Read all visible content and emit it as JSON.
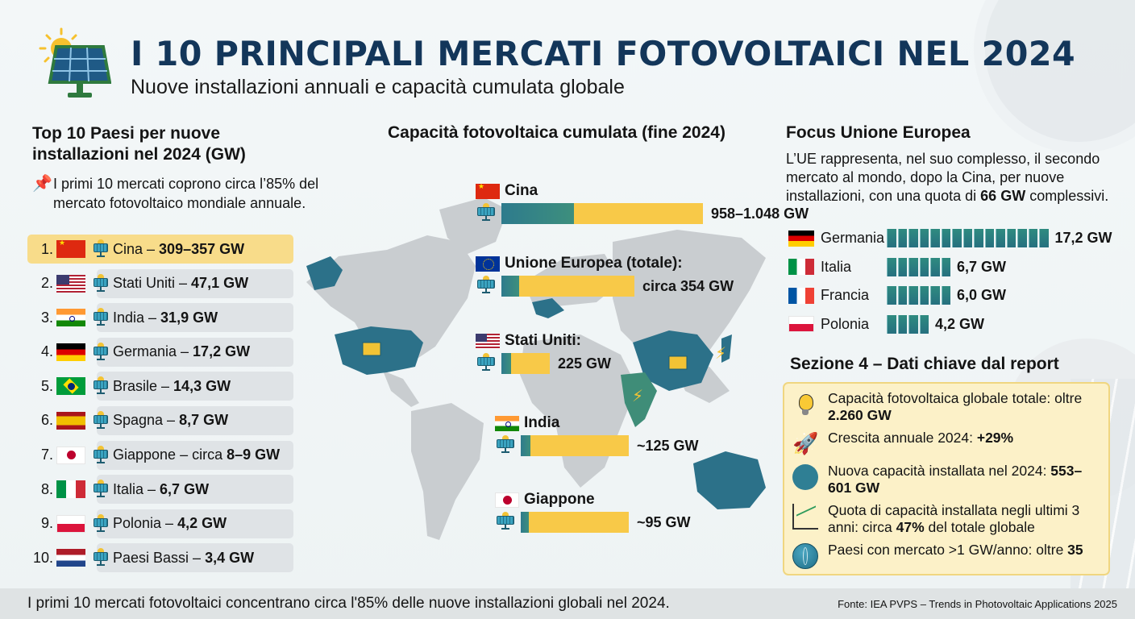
{
  "header": {
    "title": "I 10 PRINCIPALI MERCATI FOTOVOLTAICI NEL 2024",
    "subtitle": "Nuove installazioni annuali e capacità cumulata globale",
    "logo_icon": "solar-panel-with-sun-icon"
  },
  "left": {
    "title": "Top 10 Paesi per nuove installazioni nel 2024 (GW)",
    "note_icon": "pushpin-icon",
    "note": "I primi 10 mercati coprono circa l’85% del mercato fotovoltaico mondiale annuale.",
    "rows": [
      {
        "rank": "1.",
        "flag": "cn",
        "name": "Cina – ",
        "value": "309–357 GW",
        "highlight": true
      },
      {
        "rank": "2.",
        "flag": "us",
        "name": "Stati Uniti – ",
        "value": "47,1 GW"
      },
      {
        "rank": "3.",
        "flag": "in",
        "name": "India – ",
        "value": "31,9 GW"
      },
      {
        "rank": "4.",
        "flag": "de",
        "name": "Germania – ",
        "value": "17,2 GW"
      },
      {
        "rank": "5.",
        "flag": "br",
        "name": "Brasile – ",
        "value": "14,3 GW"
      },
      {
        "rank": "6.",
        "flag": "es",
        "name": "Spagna – ",
        "value": "8,7 GW"
      },
      {
        "rank": "7.",
        "flag": "jp",
        "name": "Giappone – circa ",
        "value": "8–9 GW"
      },
      {
        "rank": "8.",
        "flag": "it",
        "name": "Italia – ",
        "value": "6,7 GW"
      },
      {
        "rank": "9.",
        "flag": "pl",
        "name": "Polonia – ",
        "value": "4,2 GW"
      },
      {
        "rank": "10.",
        "flag": "nl",
        "name": "Paesi Bassi – ",
        "value": "3,4 GW"
      }
    ]
  },
  "middle": {
    "title": "Capacità fotovoltaica cumulata (fine 2024)",
    "items": [
      {
        "label": "Cina",
        "flag": "cn",
        "value": "958–1.048 GW"
      },
      {
        "label": "Unione Europea (totale):",
        "flag": "eu",
        "value": "circa 354 GW"
      },
      {
        "label": "Stati Uniti:",
        "flag": "us",
        "value": "225 GW"
      },
      {
        "label": "India",
        "flag": "in",
        "value": "~125 GW"
      },
      {
        "label": "Giappone",
        "flag": "jp",
        "value": "~95 GW"
      }
    ]
  },
  "right": {
    "eu_title": "Focus Unione Europea",
    "eu_text_pre": "L’UE rappresenta, nel suo complesso, il secondo mercato al mondo, dopo la Cina, per nuove installazioni, con una quota di ",
    "eu_text_bold": "66 GW",
    "eu_text_post": " complessivi.",
    "eu_rows": [
      {
        "flag": "de",
        "name": "Germania",
        "value": "17,2 GW",
        "blocks": 15
      },
      {
        "flag": "it",
        "name": "Italia",
        "value": "6,7 GW",
        "blocks": 6
      },
      {
        "flag": "fr",
        "name": "Francia",
        "value": "6,0 GW",
        "blocks": 6
      },
      {
        "flag": "pl",
        "name": "Polonia",
        "value": "4,2 GW",
        "blocks": 4
      }
    ],
    "key_title": "Sezione 4 – Dati chiave dal report",
    "key_items": [
      {
        "icon": "lightbulb-icon",
        "text": "Capacità fotovoltaica globale totale: oltre ",
        "bold": "2.260 GW",
        "after": ""
      },
      {
        "icon": "rocket-icon",
        "text": "Crescita annuale 2024: ",
        "bold": "+29%",
        "after": ""
      },
      {
        "icon": "gear-badge-icon",
        "text": "Nuova capacità installata nel 2024: ",
        "bold": "553–601 GW",
        "after": ""
      },
      {
        "icon": "growth-chart-icon",
        "text": "Quota di capacità installata negli ultimi 3 anni: circa ",
        "bold": "47%",
        "after": " del totale globale"
      },
      {
        "icon": "globe-icon",
        "text": "Paesi con mercato >1 GW/anno: oltre ",
        "bold": "35",
        "after": ""
      }
    ]
  },
  "footer": {
    "text": "I primi 10 mercati fotovoltaici concentrano circa l'85% delle nuove installazioni globali nel 2024.",
    "source": "Fonte: IEA PVPS – Trends in Photovoltaic Applications 2025"
  },
  "colors": {
    "title": "#13365a",
    "teal": "#2e7b8d",
    "yellow": "#f8c948",
    "highlight": "#f8dc8a",
    "row_bg": "#dfe3e6",
    "map_land": "#c9cdd0",
    "map_focus": "#2c7189",
    "key_box": "#fcf1c8"
  },
  "chart_data": [
    {
      "type": "bar",
      "title": "Top 10 Paesi per nuove installazioni nel 2024 (GW)",
      "categories": [
        "Cina",
        "Stati Uniti",
        "India",
        "Germania",
        "Brasile",
        "Spagna",
        "Giappone",
        "Italia",
        "Polonia",
        "Paesi Bassi"
      ],
      "values": [
        333,
        47.1,
        31.9,
        17.2,
        14.3,
        8.7,
        8.5,
        6.7,
        4.2,
        3.4
      ],
      "value_labels": [
        "309–357 GW",
        "47,1 GW",
        "31,9 GW",
        "17,2 GW",
        "14,3 GW",
        "8,7 GW",
        "circa 8–9 GW",
        "6,7 GW",
        "4,2 GW",
        "3,4 GW"
      ],
      "ylabel": "GW"
    },
    {
      "type": "bar",
      "title": "Capacità fotovoltaica cumulata (fine 2024)",
      "categories": [
        "Cina",
        "Unione Europea (totale)",
        "Stati Uniti",
        "India",
        "Giappone"
      ],
      "values": [
        1003,
        354,
        225,
        125,
        95
      ],
      "value_labels": [
        "958–1.048 GW",
        "circa 354 GW",
        "225 GW",
        "~125 GW",
        "~95 GW"
      ],
      "ylabel": "GW"
    },
    {
      "type": "bar",
      "title": "Focus Unione Europea",
      "categories": [
        "Germania",
        "Italia",
        "Francia",
        "Polonia"
      ],
      "values": [
        17.2,
        6.7,
        6.0,
        4.2
      ],
      "value_labels": [
        "17,2 GW",
        "6,7 GW",
        "6,0 GW",
        "4,2 GW"
      ],
      "ylabel": "GW"
    }
  ]
}
